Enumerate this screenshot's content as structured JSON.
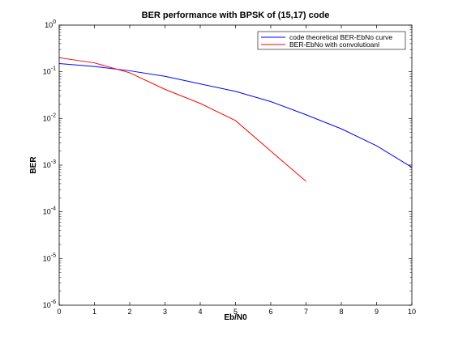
{
  "chart_data": {
    "type": "line",
    "title": "BER performance with BPSK of (15,17) code",
    "xlabel": "Eb/N0",
    "ylabel": "BER",
    "xlim": [
      0,
      10
    ],
    "ylim": [
      1e-06,
      1
    ],
    "yscale": "log",
    "grid": false,
    "legend_position": "top-right",
    "x_ticks": [
      "0",
      "1",
      "2",
      "3",
      "4",
      "5",
      "6",
      "7",
      "8",
      "9",
      "10"
    ],
    "y_ticks": [
      {
        "value": 1e-06,
        "base": "10",
        "exp": "-6"
      },
      {
        "value": 1e-05,
        "base": "10",
        "exp": "-5"
      },
      {
        "value": 0.0001,
        "base": "10",
        "exp": "-4"
      },
      {
        "value": 0.001,
        "base": "10",
        "exp": "-3"
      },
      {
        "value": 0.01,
        "base": "10",
        "exp": "-2"
      },
      {
        "value": 0.1,
        "base": "10",
        "exp": "-1"
      },
      {
        "value": 1,
        "base": "10",
        "exp": "0"
      }
    ],
    "series": [
      {
        "name": "code theoretical BER-EbNo curve",
        "color": "#0000ff",
        "x": [
          0,
          1,
          2,
          3,
          4,
          5,
          6,
          7,
          8,
          9,
          10
        ],
        "y": [
          0.15,
          0.13,
          0.105,
          0.08,
          0.055,
          0.038,
          0.023,
          0.012,
          0.006,
          0.0026,
          0.0009
        ]
      },
      {
        "name": "BER-EbNo with convolutioanl",
        "color": "#ff0000",
        "x": [
          0,
          1,
          2,
          3,
          4,
          5,
          6,
          7
        ],
        "y": [
          0.2,
          0.155,
          0.095,
          0.042,
          0.021,
          0.009,
          0.002,
          0.00045
        ]
      }
    ]
  }
}
